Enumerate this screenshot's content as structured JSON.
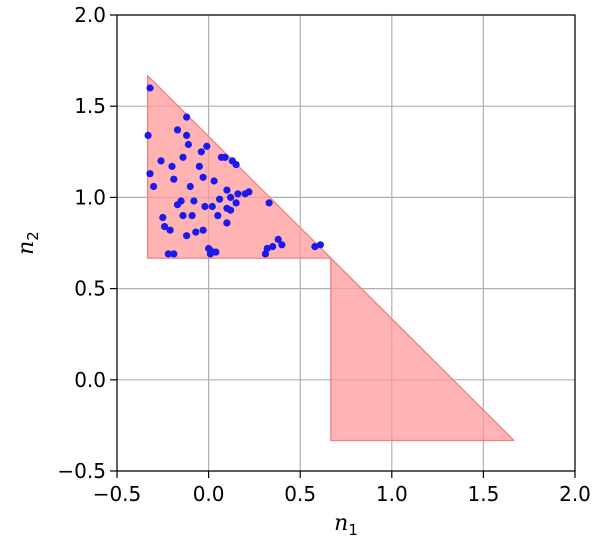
{
  "chart_data": {
    "type": "scatter",
    "title": "",
    "xlabel": {
      "main": "n",
      "sub": "1"
    },
    "ylabel": {
      "main": "n",
      "sub": "2"
    },
    "xlim": [
      -0.5,
      2.0
    ],
    "ylim": [
      -0.5,
      2.0
    ],
    "xticks": [
      -0.5,
      0.0,
      0.5,
      1.0,
      1.5,
      2.0
    ],
    "yticks": [
      -0.5,
      0.0,
      0.5,
      1.0,
      1.5,
      2.0
    ],
    "xtick_labels": [
      "−0.5",
      "0.0",
      "0.5",
      "1.0",
      "1.5",
      "2.0"
    ],
    "ytick_labels": [
      "−0.5",
      "0.0",
      "0.5",
      "1.0",
      "1.5",
      "2.0"
    ],
    "grid": true,
    "colors": {
      "region_fill": "#ff9999",
      "region_edge": "#f08080",
      "points": "#1a1aee",
      "grid": "#b0b0b0"
    },
    "regions": [
      {
        "name": "feasible-region",
        "vertices": [
          [
            -0.333,
            1.667
          ],
          [
            0.667,
            0.667
          ],
          [
            1.667,
            -0.333
          ],
          [
            0.667,
            -0.333
          ],
          [
            0.667,
            0.667
          ],
          [
            -0.333,
            0.667
          ]
        ]
      }
    ],
    "points": [
      [
        -0.32,
        1.6
      ],
      [
        -0.33,
        1.34
      ],
      [
        -0.32,
        1.13
      ],
      [
        -0.3,
        1.06
      ],
      [
        -0.26,
        1.2
      ],
      [
        -0.25,
        0.89
      ],
      [
        -0.2,
        1.17
      ],
      [
        -0.19,
        1.1
      ],
      [
        -0.17,
        0.96
      ],
      [
        -0.17,
        1.37
      ],
      [
        -0.15,
        0.98
      ],
      [
        -0.14,
        1.22
      ],
      [
        -0.12,
        1.34
      ],
      [
        -0.12,
        1.44
      ],
      [
        -0.11,
        1.29
      ],
      [
        -0.1,
        1.06
      ],
      [
        -0.09,
        0.9
      ],
      [
        -0.08,
        0.98
      ],
      [
        -0.07,
        0.81
      ],
      [
        -0.05,
        1.17
      ],
      [
        -0.04,
        1.25
      ],
      [
        -0.03,
        1.11
      ],
      [
        -0.02,
        0.95
      ],
      [
        -0.01,
        1.28
      ],
      [
        0.0,
        0.72
      ],
      [
        0.01,
        0.69
      ],
      [
        0.02,
        0.95
      ],
      [
        0.03,
        1.09
      ],
      [
        0.05,
        0.9
      ],
      [
        0.06,
        0.99
      ],
      [
        0.07,
        1.22
      ],
      [
        0.09,
        1.22
      ],
      [
        0.1,
        0.94
      ],
      [
        0.1,
        1.04
      ],
      [
        0.12,
        1.0
      ],
      [
        0.13,
        1.2
      ],
      [
        0.15,
        1.18
      ],
      [
        0.15,
        0.97
      ],
      [
        0.16,
        1.02
      ],
      [
        0.2,
        1.02
      ],
      [
        0.22,
        1.03
      ],
      [
        0.31,
        0.69
      ],
      [
        0.32,
        0.72
      ],
      [
        0.33,
        0.97
      ],
      [
        0.35,
        0.73
      ],
      [
        0.38,
        0.77
      ],
      [
        0.4,
        0.74
      ],
      [
        0.58,
        0.73
      ],
      [
        0.61,
        0.74
      ],
      [
        -0.24,
        0.84
      ],
      [
        -0.22,
        0.69
      ],
      [
        -0.19,
        0.69
      ],
      [
        -0.12,
        0.79
      ],
      [
        -0.03,
        0.82
      ],
      [
        0.01,
        0.71
      ],
      [
        0.04,
        0.7
      ],
      [
        -0.21,
        0.82
      ],
      [
        -0.14,
        0.9
      ],
      [
        0.12,
        0.93
      ],
      [
        0.1,
        0.86
      ]
    ]
  }
}
